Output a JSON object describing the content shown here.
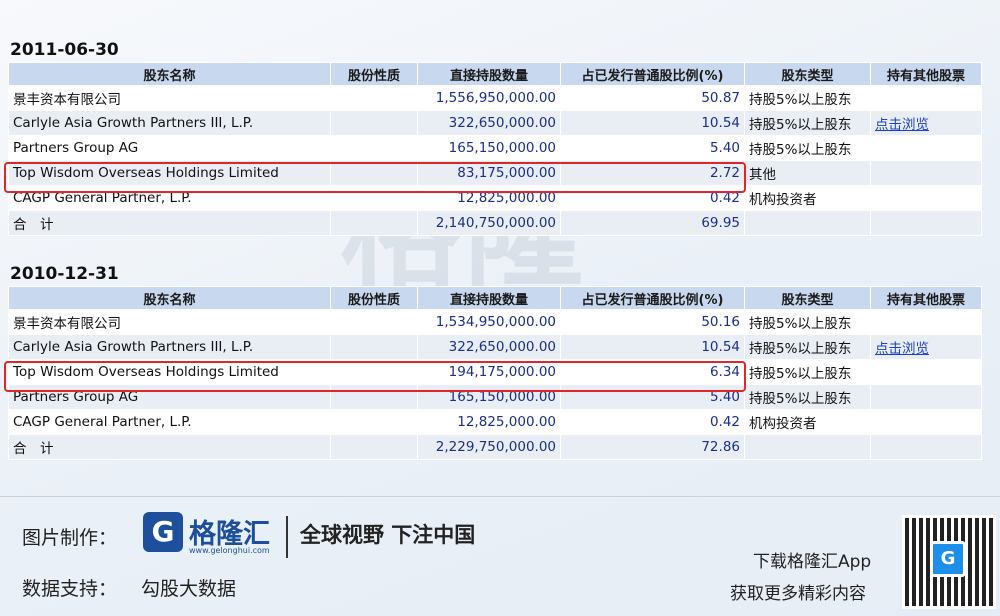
{
  "watermark": {
    "brand": "格隆汇",
    "url": "gelonghui.com"
  },
  "headers": [
    "股东名称",
    "股份性质",
    "直接持股数量",
    "占已发行普通股比例(%)",
    "股东类型",
    "持有其他股票"
  ],
  "sections": [
    {
      "date": "2011-06-30",
      "rows": [
        {
          "name": "景丰资本有限公司",
          "nature": "",
          "shares": "1,556,950,000.00",
          "ratio": "50.87",
          "type": "持股5%以上股东",
          "other": ""
        },
        {
          "name": "Carlyle Asia Growth Partners III, L.P.",
          "nature": "",
          "shares": "322,650,000.00",
          "ratio": "10.54",
          "type": "持股5%以上股东",
          "other": "点击浏览"
        },
        {
          "name": "Partners Group AG",
          "nature": "",
          "shares": "165,150,000.00",
          "ratio": "5.40",
          "type": "持股5%以上股东",
          "other": ""
        },
        {
          "name": "Top Wisdom Overseas Holdings Limited",
          "nature": "",
          "shares": "83,175,000.00",
          "ratio": "2.72",
          "type": "其他",
          "other": ""
        },
        {
          "name": "CAGP General Partner, L.P.",
          "nature": "",
          "shares": "12,825,000.00",
          "ratio": "0.42",
          "type": "机构投资者",
          "other": ""
        },
        {
          "name": "合　计",
          "nature": "",
          "shares": "2,140,750,000.00",
          "ratio": "69.95",
          "type": "",
          "other": ""
        }
      ]
    },
    {
      "date": "2010-12-31",
      "rows": [
        {
          "name": "景丰资本有限公司",
          "nature": "",
          "shares": "1,534,950,000.00",
          "ratio": "50.16",
          "type": "持股5%以上股东",
          "other": ""
        },
        {
          "name": "Carlyle Asia Growth Partners III, L.P.",
          "nature": "",
          "shares": "322,650,000.00",
          "ratio": "10.54",
          "type": "持股5%以上股东",
          "other": "点击浏览"
        },
        {
          "name": "Top Wisdom Overseas Holdings Limited",
          "nature": "",
          "shares": "194,175,000.00",
          "ratio": "6.34",
          "type": "持股5%以上股东",
          "other": ""
        },
        {
          "name": "Partners Group AG",
          "nature": "",
          "shares": "165,150,000.00",
          "ratio": "5.40",
          "type": "持股5%以上股东",
          "other": ""
        },
        {
          "name": "CAGP General Partner, L.P.",
          "nature": "",
          "shares": "12,825,000.00",
          "ratio": "0.42",
          "type": "机构投资者",
          "other": ""
        },
        {
          "name": "合　计",
          "nature": "",
          "shares": "2,229,750,000.00",
          "ratio": "72.86",
          "type": "",
          "other": ""
        }
      ]
    }
  ],
  "footer": {
    "credit_label": "图片制作：",
    "data_label": "数据支持：",
    "data_source": "勾股大数据",
    "logo_letter": "G",
    "logo_name": "格隆汇",
    "logo_url": "www.gelonghui.com",
    "slogan": "全球视野 下注中国",
    "download_line1": "下载格隆汇App",
    "download_line2": "获取更多精彩内容",
    "qr_badge": "G"
  },
  "colors": {
    "highlight": "#e0262b",
    "header_bg": "#c8d8ee",
    "number": "#1c2e8c",
    "brand": "#1d4f9c"
  }
}
